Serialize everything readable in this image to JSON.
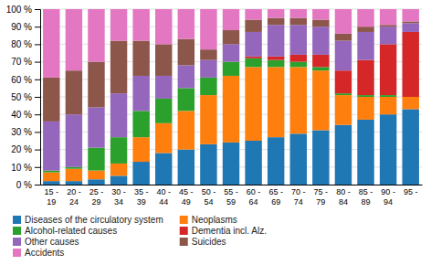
{
  "chart_data": {
    "type": "bar",
    "stacked": true,
    "categories": [
      "15 -\n19",
      "20 -\n24",
      "25 -\n29",
      "30 -\n34",
      "35 -\n39",
      "40 -\n44",
      "45 -\n49",
      "50 -\n54",
      "55 -\n59",
      "60 -\n64",
      "65 -\n69",
      "70 -\n74",
      "75 -\n79",
      "80 -\n84",
      "85 -\n89",
      "90 -\n94",
      "95 -"
    ],
    "series": [
      {
        "name": "Diseases of the circulatory system",
        "values": [
          2,
          2,
          3,
          5,
          13,
          18,
          20,
          23,
          24,
          25,
          27,
          29,
          31,
          34,
          37,
          40,
          43
        ]
      },
      {
        "name": "Neoplasms",
        "values": [
          5,
          7,
          5,
          7,
          14,
          17,
          22,
          28,
          38,
          42,
          40,
          38,
          34,
          17,
          13,
          10,
          7
        ]
      },
      {
        "name": "Alcohol-related causes",
        "values": [
          1,
          1,
          13,
          15,
          15,
          14,
          13,
          10,
          8,
          5,
          4,
          3,
          2,
          1,
          1,
          1,
          0
        ]
      },
      {
        "name": "Dementia incl. Alz.",
        "values": [
          0,
          0,
          0,
          0,
          0,
          0,
          0,
          0,
          0,
          1,
          2,
          4,
          7,
          13,
          20,
          29,
          37
        ]
      },
      {
        "name": "Other causes",
        "values": [
          28,
          30,
          23,
          25,
          20,
          13,
          13,
          10,
          10,
          14,
          18,
          17,
          16,
          17,
          16,
          10,
          5
        ]
      },
      {
        "name": "Suicides",
        "values": [
          25,
          25,
          26,
          30,
          20,
          18,
          15,
          6,
          8,
          7,
          4,
          4,
          4,
          4,
          3,
          1,
          1
        ]
      },
      {
        "name": "Accidents",
        "values": [
          39,
          35,
          30,
          18,
          18,
          20,
          17,
          23,
          12,
          6,
          5,
          5,
          6,
          14,
          10,
          9,
          7
        ]
      }
    ],
    "ylim": [
      0,
      100
    ],
    "yticks": [
      {
        "value": 0,
        "label": "0 %"
      },
      {
        "value": 10,
        "label": "10 %"
      },
      {
        "value": 20,
        "label": "20 %"
      },
      {
        "value": 30,
        "label": "30 %"
      },
      {
        "value": 40,
        "label": "40 %"
      },
      {
        "value": 50,
        "label": "50 %"
      },
      {
        "value": 60,
        "label": "60 %"
      },
      {
        "value": 70,
        "label": "70 %"
      },
      {
        "value": 80,
        "label": "80 %"
      },
      {
        "value": 90,
        "label": "90 %"
      },
      {
        "value": 100,
        "label": "100 %"
      }
    ],
    "grid": true,
    "legend": "bottom"
  }
}
